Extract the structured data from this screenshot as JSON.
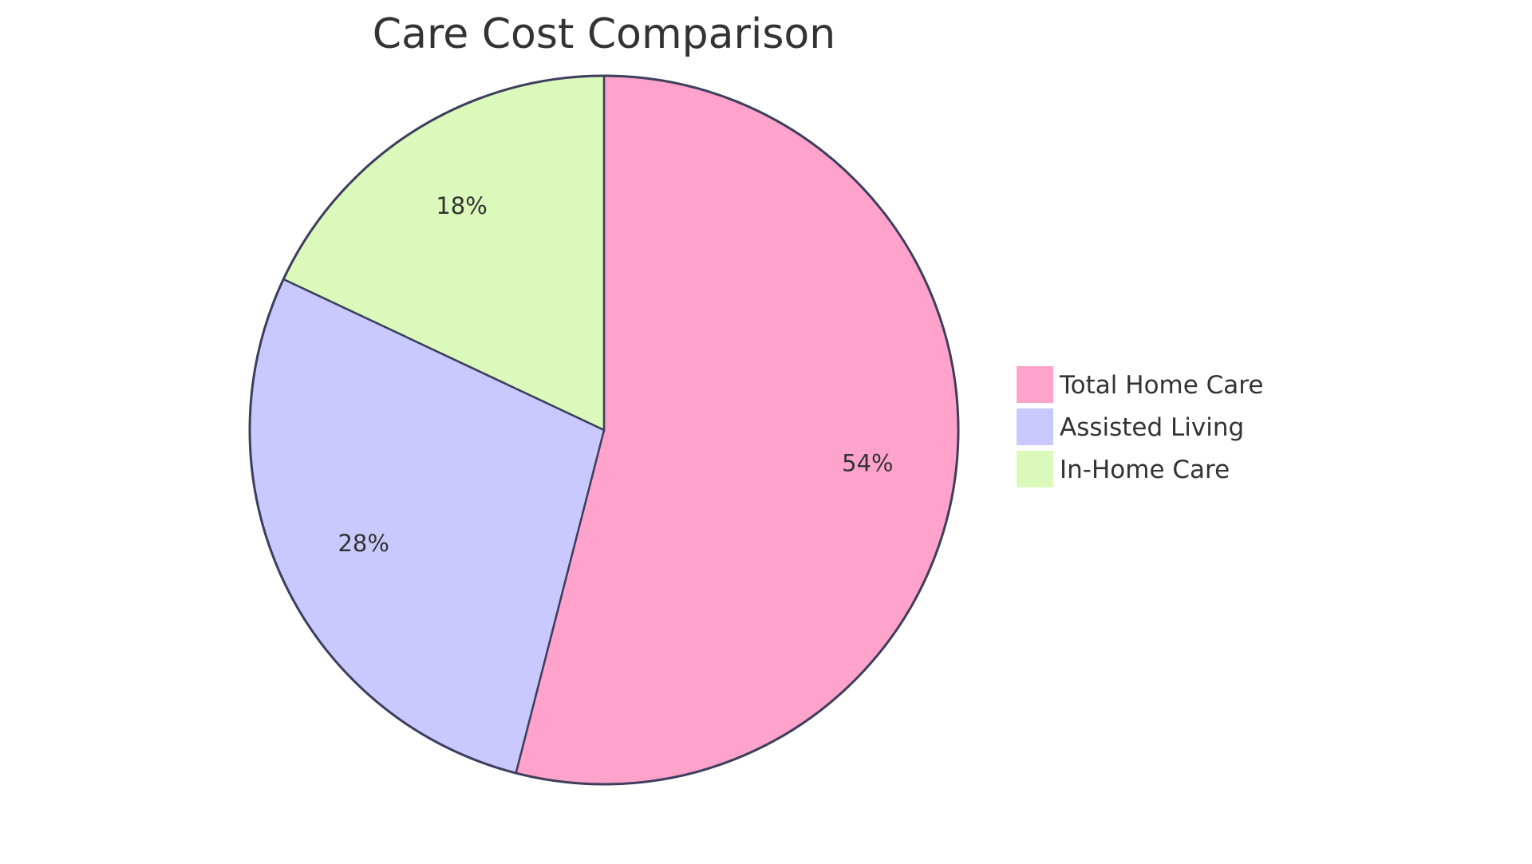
{
  "chart_data": {
    "type": "pie",
    "title": "Care Cost Comparison",
    "categories": [
      "Total Home Care",
      "Assisted Living",
      "In-Home Care"
    ],
    "values": [
      54,
      28,
      18
    ],
    "labels": [
      "54%",
      "28%",
      "18%"
    ],
    "colors": [
      "#ffa2cc",
      "#c9c9ff",
      "#dbf9bb"
    ],
    "stroke_color": "#3d3f5c",
    "legend_placement": "right"
  }
}
